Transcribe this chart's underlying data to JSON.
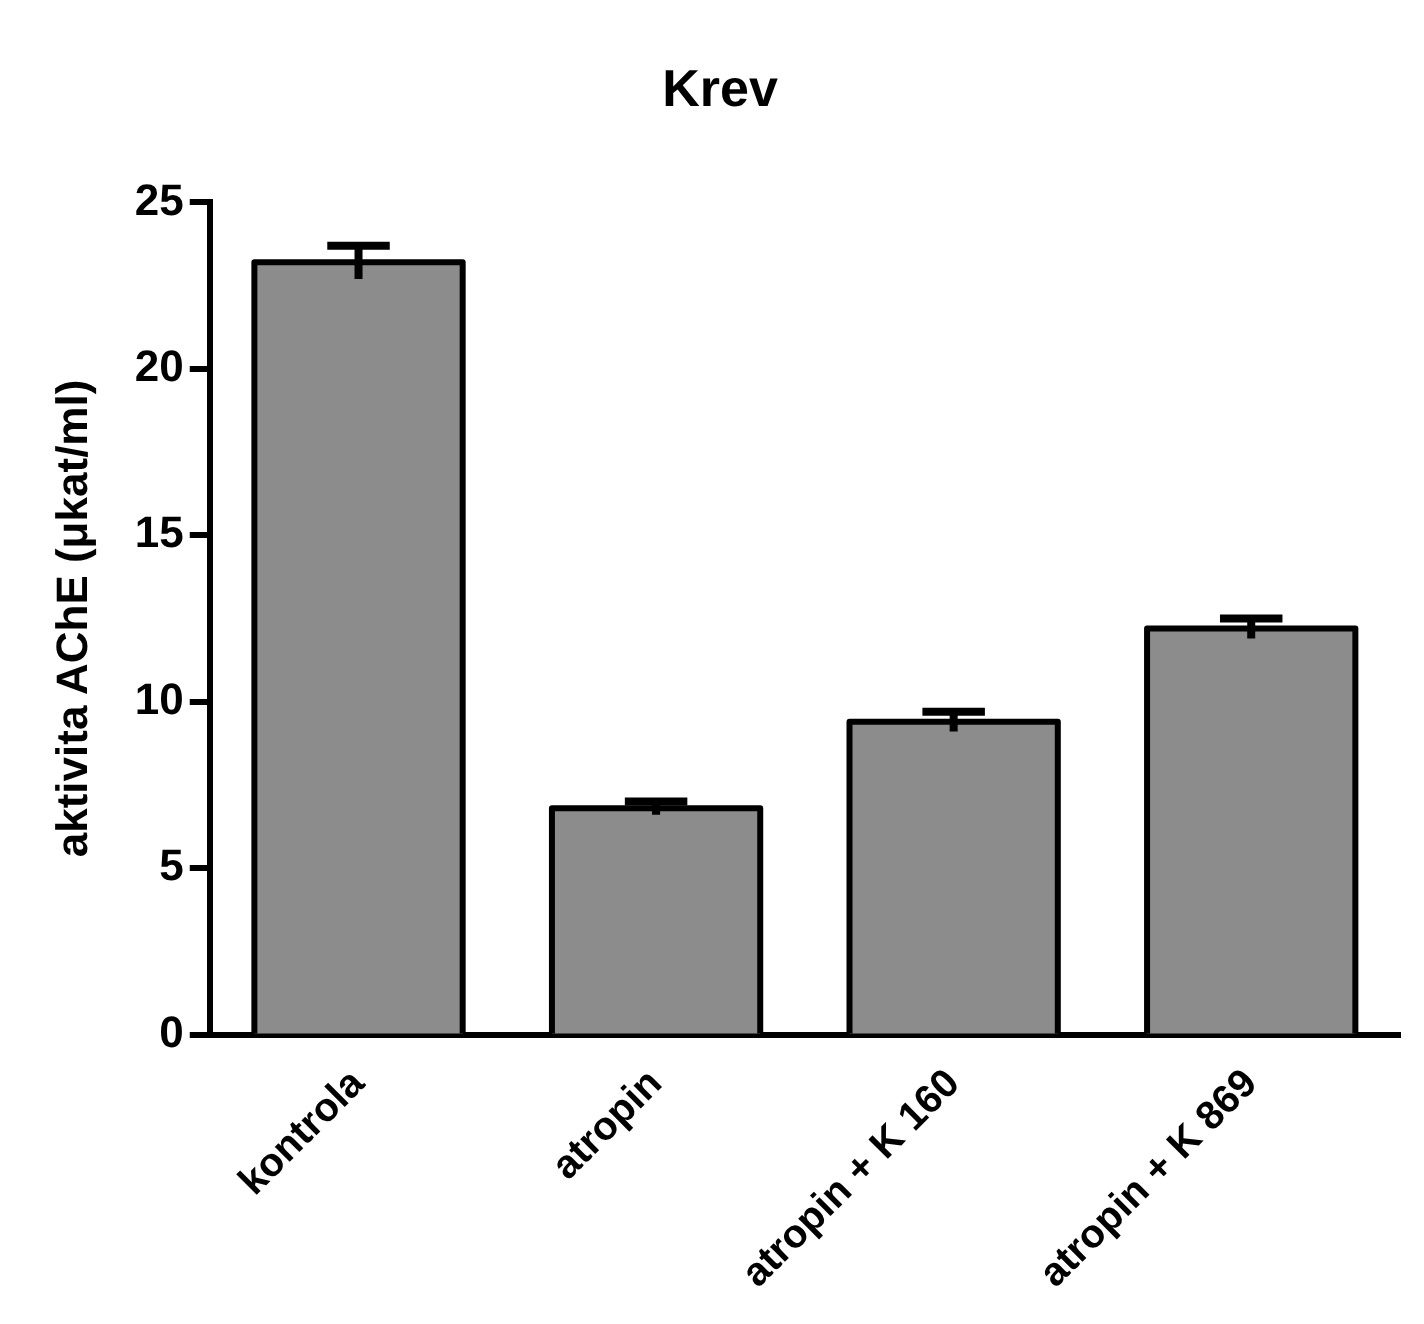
{
  "chart_data": {
    "type": "bar",
    "title": "Krev",
    "ylabel": "aktivita AChE (μkat/ml)",
    "categories": [
      "kontrola",
      "atropin",
      "atropin + K 160",
      "atropin + K 869"
    ],
    "values": [
      23.2,
      6.8,
      9.4,
      12.2
    ],
    "errors": [
      0.5,
      0.2,
      0.3,
      0.3
    ],
    "color": "#8c8c8c",
    "ylim": [
      0,
      25
    ],
    "yticks": [
      0,
      5,
      10,
      15,
      20,
      25
    ],
    "grid": false,
    "legend": false
  }
}
